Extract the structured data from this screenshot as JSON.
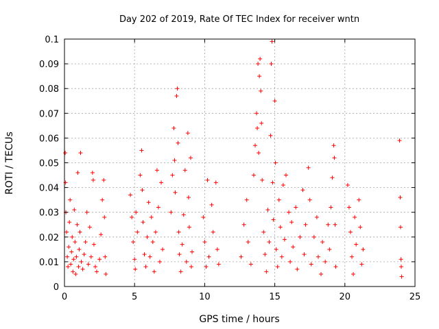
{
  "chart_data": {
    "type": "scatter",
    "title": "Day 202 of 2019, Rate Of TEC Index for receiver wntn",
    "xlabel": "GPS time / hours",
    "ylabel": "ROTI / TECUs",
    "xlim": [
      0,
      25
    ],
    "ylim": [
      0,
      0.1
    ],
    "x_ticks": [
      0,
      5,
      10,
      15,
      20,
      25
    ],
    "y_ticks": [
      0,
      0.01,
      0.02,
      0.03,
      0.04,
      0.05,
      0.06,
      0.07,
      0.08,
      0.09,
      0.1
    ],
    "x_tick_labels": [
      "0",
      "5",
      "10",
      "15",
      "20",
      "25"
    ],
    "y_tick_labels": [
      "0",
      "0.01",
      "0.02",
      "0.03",
      "0.04",
      "0.05",
      "0.06",
      "0.07",
      "0.08",
      "0.09",
      "0.1"
    ],
    "grid": true,
    "marker": "+",
    "series": [
      {
        "color": "#ff0000",
        "points": [
          [
            0.05,
            0.054
          ],
          [
            0.08,
            0.042
          ],
          [
            0.1,
            0.03
          ],
          [
            0.15,
            0.022
          ],
          [
            0.2,
            0.012
          ],
          [
            0.25,
            0.008
          ],
          [
            0.3,
            0.016
          ],
          [
            0.35,
            0.026
          ],
          [
            0.4,
            0.035
          ],
          [
            0.45,
            0.009
          ],
          [
            0.5,
            0.014
          ],
          [
            0.55,
            0.02
          ],
          [
            0.6,
            0.006
          ],
          [
            0.65,
            0.011
          ],
          [
            0.7,
            0.031
          ],
          [
            0.75,
            0.018
          ],
          [
            0.8,
            0.005
          ],
          [
            0.85,
            0.012
          ],
          [
            0.9,
            0.025
          ],
          [
            0.95,
            0.046
          ],
          [
            1.0,
            0.008
          ],
          [
            1.05,
            0.015
          ],
          [
            1.1,
            0.022
          ],
          [
            1.15,
            0.054
          ],
          [
            1.2,
            0.01
          ],
          [
            1.3,
            0.007
          ],
          [
            1.4,
            0.013
          ],
          [
            1.5,
            0.018
          ],
          [
            1.6,
            0.03
          ],
          [
            1.7,
            0.009
          ],
          [
            1.8,
            0.024
          ],
          [
            1.9,
            0.012
          ],
          [
            2.0,
            0.046
          ],
          [
            2.05,
            0.043
          ],
          [
            2.1,
            0.017
          ],
          [
            2.2,
            0.008
          ],
          [
            2.3,
            0.006
          ],
          [
            2.5,
            0.011
          ],
          [
            2.6,
            0.021
          ],
          [
            2.7,
            0.035
          ],
          [
            2.8,
            0.043
          ],
          [
            2.85,
            0.028
          ],
          [
            2.9,
            0.012
          ],
          [
            2.95,
            0.005
          ],
          [
            4.7,
            0.037
          ],
          [
            4.8,
            0.028
          ],
          [
            4.9,
            0.018
          ],
          [
            5.0,
            0.011
          ],
          [
            5.05,
            0.007
          ],
          [
            5.1,
            0.03
          ],
          [
            5.2,
            0.022
          ],
          [
            5.4,
            0.045
          ],
          [
            5.5,
            0.055
          ],
          [
            5.55,
            0.039
          ],
          [
            5.6,
            0.026
          ],
          [
            5.7,
            0.013
          ],
          [
            5.8,
            0.008
          ],
          [
            5.9,
            0.02
          ],
          [
            6.0,
            0.034
          ],
          [
            6.1,
            0.012
          ],
          [
            6.2,
            0.028
          ],
          [
            6.3,
            0.018
          ],
          [
            6.4,
            0.006
          ],
          [
            6.5,
            0.022
          ],
          [
            6.6,
            0.047
          ],
          [
            6.7,
            0.032
          ],
          [
            6.8,
            0.01
          ],
          [
            6.9,
            0.042
          ],
          [
            7.0,
            0.015
          ],
          [
            7.6,
            0.03
          ],
          [
            7.7,
            0.045
          ],
          [
            7.8,
            0.064
          ],
          [
            7.85,
            0.051
          ],
          [
            7.9,
            0.038
          ],
          [
            8.0,
            0.077
          ],
          [
            8.05,
            0.08
          ],
          [
            8.1,
            0.058
          ],
          [
            8.15,
            0.022
          ],
          [
            8.2,
            0.013
          ],
          [
            8.3,
            0.006
          ],
          [
            8.4,
            0.017
          ],
          [
            8.5,
            0.029
          ],
          [
            8.6,
            0.047
          ],
          [
            8.7,
            0.01
          ],
          [
            8.8,
            0.062
          ],
          [
            8.85,
            0.036
          ],
          [
            8.9,
            0.024
          ],
          [
            9.0,
            0.052
          ],
          [
            9.05,
            0.008
          ],
          [
            9.1,
            0.014
          ],
          [
            9.9,
            0.028
          ],
          [
            10.0,
            0.018
          ],
          [
            10.1,
            0.008
          ],
          [
            10.2,
            0.043
          ],
          [
            10.3,
            0.012
          ],
          [
            10.5,
            0.033
          ],
          [
            10.6,
            0.022
          ],
          [
            10.8,
            0.042
          ],
          [
            10.9,
            0.015
          ],
          [
            11.0,
            0.009
          ],
          [
            12.6,
            0.012
          ],
          [
            12.8,
            0.025
          ],
          [
            13.0,
            0.035
          ],
          [
            13.1,
            0.018
          ],
          [
            13.3,
            0.009
          ],
          [
            13.5,
            0.045
          ],
          [
            13.6,
            0.057
          ],
          [
            13.7,
            0.07
          ],
          [
            13.75,
            0.064
          ],
          [
            13.8,
            0.09
          ],
          [
            13.85,
            0.054
          ],
          [
            13.9,
            0.085
          ],
          [
            13.95,
            0.092
          ],
          [
            14.0,
            0.079
          ],
          [
            14.05,
            0.066
          ],
          [
            14.1,
            0.043
          ],
          [
            14.2,
            0.022
          ],
          [
            14.3,
            0.013
          ],
          [
            14.4,
            0.006
          ],
          [
            14.5,
            0.031
          ],
          [
            14.6,
            0.018
          ],
          [
            14.7,
            0.061
          ],
          [
            14.75,
            0.09
          ],
          [
            14.8,
            0.099
          ],
          [
            14.85,
            0.042
          ],
          [
            14.9,
            0.027
          ],
          [
            15.0,
            0.075
          ],
          [
            15.05,
            0.05
          ],
          [
            15.1,
            0.015
          ],
          [
            15.2,
            0.008
          ],
          [
            15.3,
            0.035
          ],
          [
            15.4,
            0.024
          ],
          [
            15.5,
            0.012
          ],
          [
            15.6,
            0.041
          ],
          [
            15.7,
            0.019
          ],
          [
            15.8,
            0.045
          ],
          [
            16.0,
            0.03
          ],
          [
            16.1,
            0.01
          ],
          [
            16.2,
            0.026
          ],
          [
            16.3,
            0.016
          ],
          [
            16.5,
            0.032
          ],
          [
            16.6,
            0.007
          ],
          [
            16.8,
            0.02
          ],
          [
            17.0,
            0.039
          ],
          [
            17.1,
            0.013
          ],
          [
            17.2,
            0.025
          ],
          [
            17.4,
            0.048
          ],
          [
            17.5,
            0.035
          ],
          [
            17.6,
            0.009
          ],
          [
            17.8,
            0.02
          ],
          [
            18.0,
            0.028
          ],
          [
            18.1,
            0.012
          ],
          [
            18.3,
            0.005
          ],
          [
            18.4,
            0.018
          ],
          [
            18.6,
            0.01
          ],
          [
            18.8,
            0.025
          ],
          [
            18.9,
            0.015
          ],
          [
            19.0,
            0.032
          ],
          [
            19.1,
            0.044
          ],
          [
            19.2,
            0.057
          ],
          [
            19.25,
            0.052
          ],
          [
            19.3,
            0.025
          ],
          [
            19.35,
            0.008
          ],
          [
            20.2,
            0.041
          ],
          [
            20.3,
            0.032
          ],
          [
            20.4,
            0.022
          ],
          [
            20.5,
            0.012
          ],
          [
            20.6,
            0.005
          ],
          [
            20.7,
            0.028
          ],
          [
            20.8,
            0.017
          ],
          [
            21.0,
            0.035
          ],
          [
            21.1,
            0.024
          ],
          [
            21.2,
            0.009
          ],
          [
            21.3,
            0.015
          ],
          [
            23.9,
            0.059
          ],
          [
            23.95,
            0.036
          ],
          [
            23.97,
            0.024
          ],
          [
            24.0,
            0.011
          ],
          [
            24.02,
            0.008
          ],
          [
            24.05,
            0.004
          ]
        ]
      }
    ]
  }
}
